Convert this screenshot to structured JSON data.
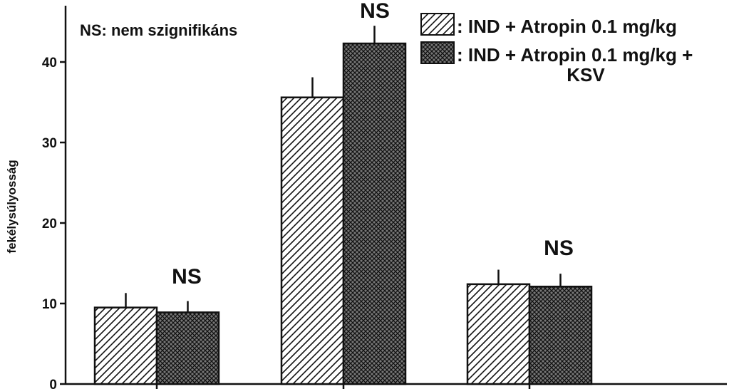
{
  "chart_data": {
    "type": "bar",
    "categories": [
      "",
      "",
      ""
    ],
    "series": [
      {
        "name": ": IND + Atropin 0.1 mg/kg",
        "pattern": "hatch",
        "values": [
          9.5,
          35.6,
          12.4
        ],
        "errors": [
          1.8,
          2.5,
          1.8
        ]
      },
      {
        "name": ": IND + Atropin 0.1 mg/kg + KSV",
        "pattern": "crosshatch",
        "values": [
          8.9,
          42.3,
          12.1
        ],
        "errors": [
          1.4,
          2.2,
          1.6
        ]
      }
    ],
    "ylabel": "fekélysúlyosság",
    "ylim": [
      0,
      45
    ],
    "yticks": [
      0,
      10,
      20,
      30,
      40
    ],
    "annotation": "NS: nem szignifikáns",
    "significance": [
      "NS",
      "NS",
      "NS"
    ],
    "legend_position": "top-right",
    "colors": {
      "bar_fill": "#ffffff",
      "stroke": "#111111",
      "crosshatch_dark": "#222222"
    }
  }
}
